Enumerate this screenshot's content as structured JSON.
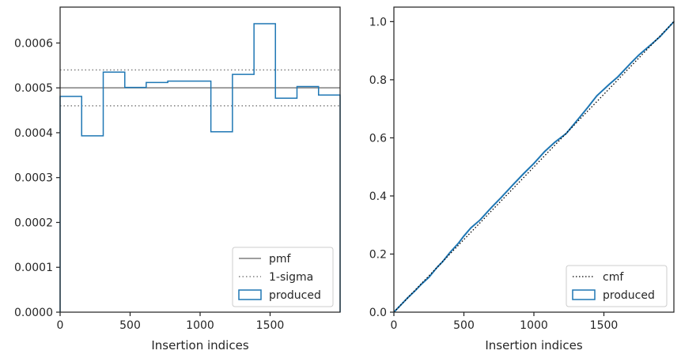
{
  "chart_data": [
    {
      "type": "histogram",
      "xlabel": "Insertion indices",
      "ylabel": "",
      "xlim": [
        0,
        2000
      ],
      "ylim": [
        0,
        0.00068
      ],
      "x_ticks": [
        0,
        500,
        1000,
        1500
      ],
      "y_ticks": [
        0,
        0.0001,
        0.0002,
        0.0003,
        0.0004,
        0.0005,
        0.0006
      ],
      "x_tick_labels": [
        "0",
        "500",
        "1000",
        "1500"
      ],
      "y_tick_labels": [
        "0.0000",
        "0.0001",
        "0.0002",
        "0.0003",
        "0.0004",
        "0.0005",
        "0.0006"
      ],
      "pmf": 0.0005,
      "sigma_band": [
        0.00046,
        0.00054
      ],
      "bin_edges": [
        0,
        154,
        308,
        462,
        615,
        769,
        923,
        1077,
        1231,
        1385,
        1538,
        1692,
        1846,
        2000
      ],
      "bin_values": [
        0.000481,
        0.000393,
        0.000535,
        0.000501,
        0.000512,
        0.000515,
        0.000515,
        0.000402,
        0.00053,
        0.000643,
        0.000477,
        0.000503,
        0.000484
      ],
      "legend_position": "lower-right",
      "legend": [
        {
          "label": "pmf",
          "style": "line",
          "color": "#7f7f7f"
        },
        {
          "label": "1-sigma",
          "style": "dotted",
          "color": "#7f7f7f"
        },
        {
          "label": "produced",
          "style": "patch",
          "color": "#1f77b4"
        }
      ]
    },
    {
      "type": "line",
      "xlabel": "Insertion indices",
      "ylabel": "",
      "xlim": [
        0,
        2000
      ],
      "ylim": [
        0,
        1.05
      ],
      "x_ticks": [
        0,
        500,
        1000,
        1500
      ],
      "y_ticks": [
        0,
        0.2,
        0.4,
        0.6,
        0.8,
        1.0
      ],
      "x_tick_labels": [
        "0",
        "500",
        "1000",
        "1500"
      ],
      "y_tick_labels": [
        "0.0",
        "0.2",
        "0.4",
        "0.6",
        "0.8",
        "1.0"
      ],
      "cmf": {
        "x": [
          0,
          2000
        ],
        "y": [
          0,
          1.0
        ]
      },
      "produced": {
        "x": [
          0,
          50,
          100,
          154,
          200,
          250,
          308,
          350,
          400,
          462,
          500,
          550,
          615,
          700,
          769,
          850,
          923,
          1000,
          1077,
          1150,
          1231,
          1300,
          1385,
          1450,
          1538,
          1600,
          1692,
          1750,
          1846,
          1900,
          2000
        ],
        "y": [
          0,
          0.025,
          0.05,
          0.075,
          0.098,
          0.12,
          0.154,
          0.175,
          0.205,
          0.238,
          0.262,
          0.29,
          0.317,
          0.362,
          0.396,
          0.438,
          0.475,
          0.512,
          0.553,
          0.585,
          0.615,
          0.655,
          0.705,
          0.745,
          0.784,
          0.81,
          0.857,
          0.885,
          0.925,
          0.948,
          1.0
        ]
      },
      "legend_position": "lower-right",
      "legend": [
        {
          "label": "cmf",
          "style": "dotted",
          "color": "#000000"
        },
        {
          "label": "produced",
          "style": "patch",
          "color": "#1f77b4"
        }
      ]
    }
  ]
}
